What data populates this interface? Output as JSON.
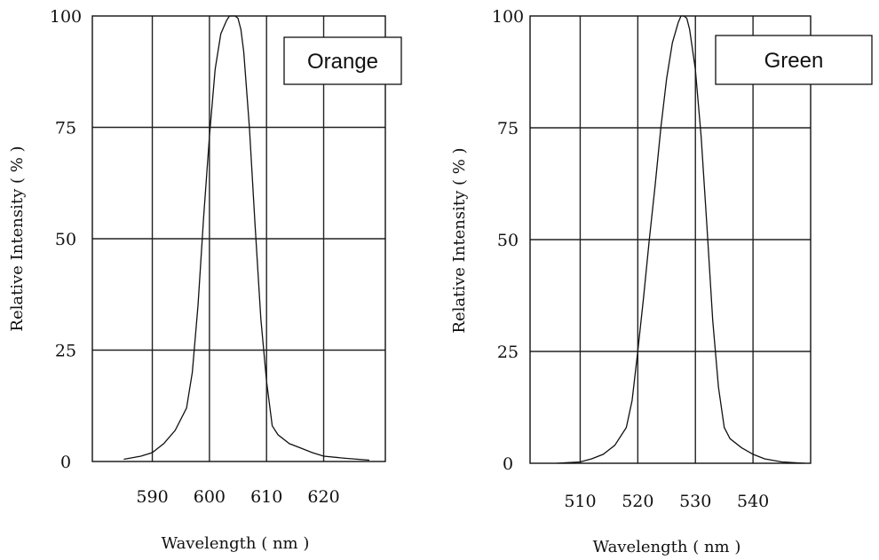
{
  "chart_data": [
    {
      "type": "line",
      "title": "",
      "legend": "Orange",
      "legend_position": "top-right",
      "xlabel": "Wavelength ( nm )",
      "ylabel": "Relative Intensity ( % )",
      "xlim": [
        579.5,
        630.8
      ],
      "ylim": [
        0,
        100
      ],
      "x_ticks": [
        590,
        600,
        610,
        620
      ],
      "y_ticks": [
        0,
        25,
        50,
        75,
        100
      ],
      "grid": true,
      "series": [
        {
          "x": [
            585,
            588,
            590,
            592,
            594,
            596,
            597,
            598,
            599,
            600,
            601,
            602,
            603,
            603.5,
            604,
            604.5,
            605,
            605.5,
            606,
            607,
            608,
            609,
            610,
            611,
            612,
            614,
            616,
            618,
            620,
            624,
            628
          ],
          "y": [
            0.5,
            1.2,
            2,
            4,
            7,
            12,
            20,
            35,
            55,
            73,
            88,
            96,
            99,
            100,
            100,
            100,
            99.5,
            97,
            92,
            75,
            53,
            32,
            18,
            8,
            6,
            4,
            3,
            2,
            1.2,
            0.7,
            0.3
          ]
        }
      ]
    },
    {
      "type": "line",
      "title": "",
      "legend": "Green",
      "legend_position": "top-right",
      "xlabel": "Wavelength ( nm )",
      "ylabel": "Relative Intensity ( % )",
      "xlim": [
        501.3,
        550
      ],
      "ylim": [
        0,
        100
      ],
      "x_ticks": [
        510,
        520,
        530,
        540
      ],
      "y_ticks": [
        0,
        25,
        50,
        75,
        100
      ],
      "grid": true,
      "series": [
        {
          "x": [
            506,
            510,
            512,
            514,
            516,
            518,
            519,
            520,
            521,
            522,
            523,
            524,
            525,
            526,
            527,
            527.5,
            528,
            528.5,
            529,
            530,
            531,
            532,
            533,
            534,
            535,
            536,
            538,
            540,
            542,
            545,
            549
          ],
          "y": [
            0,
            0.3,
            1,
            2,
            4,
            8,
            14,
            25,
            37,
            50,
            62,
            75,
            86,
            94,
            98.5,
            100,
            100,
            99.5,
            97,
            88,
            73,
            53,
            32,
            17,
            8,
            5.5,
            3.5,
            2,
            1,
            0.3,
            0
          ]
        }
      ]
    }
  ]
}
